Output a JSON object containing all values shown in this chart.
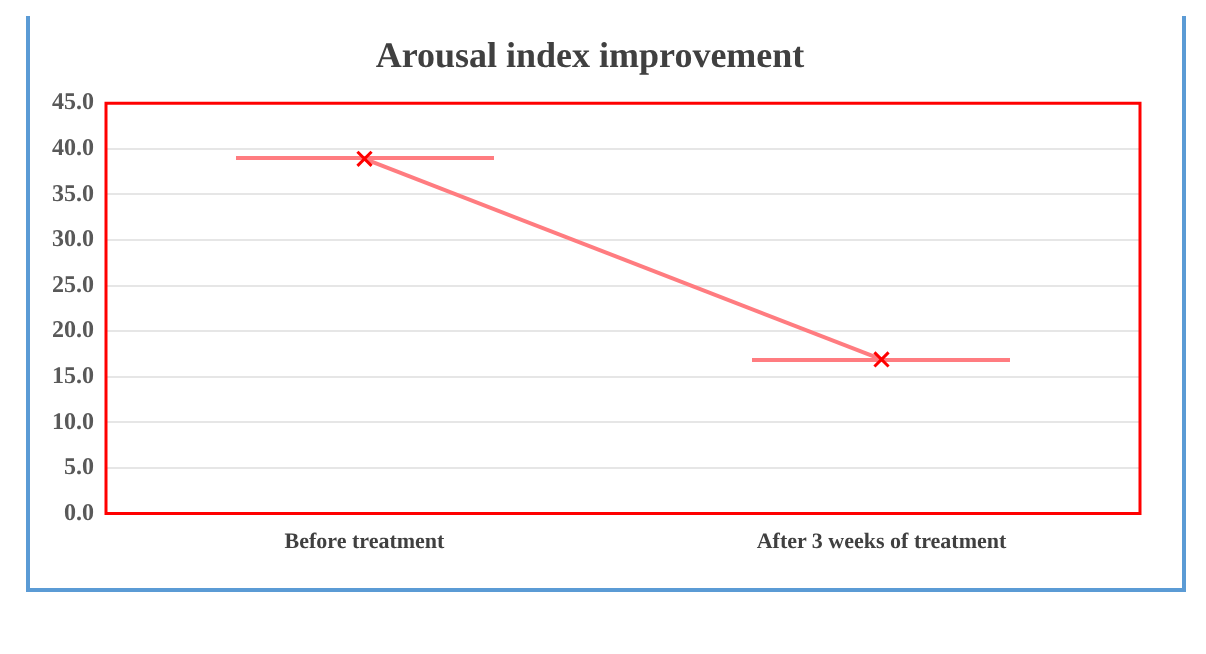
{
  "chart_data": {
    "type": "line",
    "title": "Arousal index improvement",
    "categories": [
      "Before treatment",
      "After 3 weeks of treatment"
    ],
    "series": [
      {
        "color": "#ff7c80",
        "values": [
          38.9,
          16.9
        ]
      }
    ],
    "ylim": [
      0,
      45
    ],
    "yticks": [
      {
        "value": 0,
        "label": "0.0"
      },
      {
        "value": 5,
        "label": "5.0"
      },
      {
        "value": 10,
        "label": "10.0"
      },
      {
        "value": 15,
        "label": "15.0"
      },
      {
        "value": 20,
        "label": "20.0"
      },
      {
        "value": 25,
        "label": "25.0"
      },
      {
        "value": 30,
        "label": "30.0"
      },
      {
        "value": 35,
        "label": "35.0"
      },
      {
        "value": 40,
        "label": "40.0"
      },
      {
        "value": 45,
        "label": "45.0"
      }
    ],
    "grid": "y",
    "legend": false,
    "marker": "cross",
    "line_style": "solid"
  }
}
